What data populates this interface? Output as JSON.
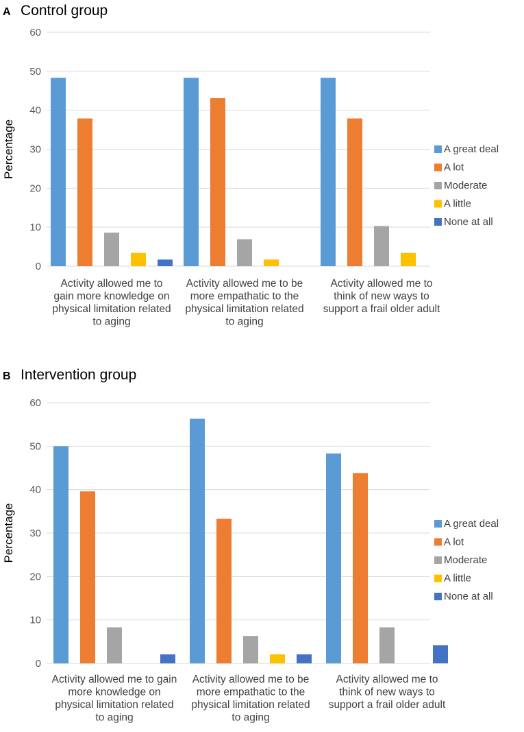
{
  "chart_data": [
    {
      "type": "bar",
      "panel": "A",
      "title": "Control group",
      "ylabel": "Percentage",
      "xlabel": "",
      "ylim": [
        0,
        60
      ],
      "yticks": [
        "0",
        "10",
        "20",
        "30",
        "40",
        "50",
        "60"
      ],
      "categories": [
        [
          "Activity allowed me to",
          "gain more knowledge on",
          "physical limitation related",
          "to aging"
        ],
        [
          "Activity allowed me to be",
          "more empathatic to the",
          "physical limitation related",
          "to aging"
        ],
        [
          "Activity allowed me to",
          "think of new ways to",
          "support a frail older adult"
        ]
      ],
      "series": [
        {
          "name": "A great deal",
          "color": "#5b9bd5",
          "values": [
            48.3,
            48.3,
            48.3
          ]
        },
        {
          "name": "A lot",
          "color": "#ed7d31",
          "values": [
            37.9,
            43.1,
            37.9
          ]
        },
        {
          "name": "Moderate",
          "color": "#a5a5a5",
          "values": [
            8.6,
            6.9,
            10.3
          ]
        },
        {
          "name": "A little",
          "color": "#ffc000",
          "values": [
            3.4,
            1.7,
            3.4
          ]
        },
        {
          "name": "None at all",
          "color": "#4472c4",
          "values": [
            1.7,
            0,
            0
          ]
        }
      ],
      "legend_position": "right"
    },
    {
      "type": "bar",
      "panel": "B",
      "title": "Intervention group",
      "ylabel": "Percentage",
      "xlabel": "",
      "ylim": [
        0,
        60
      ],
      "yticks": [
        "0",
        "10",
        "20",
        "30",
        "40",
        "50",
        "60"
      ],
      "categories": [
        [
          "Activity allowed me to gain",
          "more knowledge on",
          "physical limitation related",
          "to aging"
        ],
        [
          "Activity allowed me to be",
          "more empathatic to the",
          "physical limitation related",
          "to aging"
        ],
        [
          "Activity allowed me to",
          "think of new ways to",
          "support a frail older adult"
        ]
      ],
      "series": [
        {
          "name": "A great deal",
          "color": "#5b9bd5",
          "values": [
            50.0,
            56.3,
            48.3
          ]
        },
        {
          "name": "A lot",
          "color": "#ed7d31",
          "values": [
            39.6,
            33.3,
            43.8
          ]
        },
        {
          "name": "Moderate",
          "color": "#a5a5a5",
          "values": [
            8.3,
            6.3,
            8.3
          ]
        },
        {
          "name": "A little",
          "color": "#ffc000",
          "values": [
            0,
            2.1,
            0
          ]
        },
        {
          "name": "None at all",
          "color": "#4472c4",
          "values": [
            2.1,
            2.1,
            4.2
          ]
        }
      ],
      "legend_position": "right"
    }
  ]
}
